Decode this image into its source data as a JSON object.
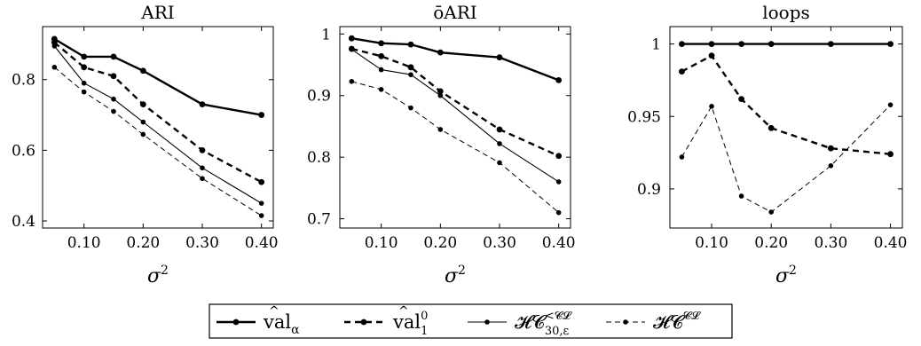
{
  "chart_data": [
    {
      "type": "line",
      "title": "ARI",
      "xlabel": "σ2",
      "ylabel": "",
      "x": [
        0.05,
        0.1,
        0.15,
        0.2,
        0.3,
        0.4
      ],
      "x_ticks": [
        "0.10",
        "0.20",
        "0.30",
        "0.40"
      ],
      "x_tick_values": [
        0.1,
        0.2,
        0.3,
        0.4
      ],
      "xlim": [
        0.03,
        0.42
      ],
      "ylim": [
        0.38,
        0.95
      ],
      "y_ticks": [
        "0.4",
        "0.6",
        "0.8"
      ],
      "y_tick_values": [
        0.4,
        0.6,
        0.8
      ],
      "series": [
        {
          "values": [
            0.915,
            0.865,
            0.865,
            0.825,
            0.73,
            0.7
          ]
        },
        {
          "values": [
            0.905,
            0.835,
            0.81,
            0.73,
            0.6,
            0.51
          ]
        },
        {
          "values": [
            0.895,
            0.79,
            0.745,
            0.68,
            0.55,
            0.45
          ]
        },
        {
          "values": [
            0.835,
            0.765,
            0.71,
            0.645,
            0.52,
            0.415
          ]
        }
      ]
    },
    {
      "type": "line",
      "title": "ōARI",
      "xlabel": "σ2",
      "ylabel": "",
      "x": [
        0.05,
        0.1,
        0.15,
        0.2,
        0.3,
        0.4
      ],
      "x_ticks": [
        "0.10",
        "0.20",
        "0.30",
        "0.40"
      ],
      "x_tick_values": [
        0.1,
        0.2,
        0.3,
        0.4
      ],
      "xlim": [
        0.03,
        0.42
      ],
      "ylim": [
        0.685,
        1.012
      ],
      "y_ticks": [
        "0.7",
        "0.8",
        "0.9",
        "1"
      ],
      "y_tick_values": [
        0.7,
        0.8,
        0.9,
        1.0
      ],
      "series": [
        {
          "values": [
            0.993,
            0.985,
            0.983,
            0.97,
            0.962,
            0.925
          ]
        },
        {
          "values": [
            0.976,
            0.964,
            0.946,
            0.907,
            0.845,
            0.802
          ]
        },
        {
          "values": [
            0.975,
            0.942,
            0.934,
            0.9,
            0.822,
            0.76
          ]
        },
        {
          "values": [
            0.923,
            0.91,
            0.88,
            0.845,
            0.791,
            0.71
          ]
        }
      ]
    },
    {
      "type": "line",
      "title": "loops",
      "xlabel": "σ2",
      "ylabel": "",
      "x": [
        0.05,
        0.1,
        0.15,
        0.2,
        0.3,
        0.4
      ],
      "x_ticks": [
        "0.10",
        "0.20",
        "0.30",
        "0.40"
      ],
      "x_tick_values": [
        0.1,
        0.2,
        0.3,
        0.4
      ],
      "xlim": [
        0.03,
        0.42
      ],
      "ylim": [
        0.873,
        1.012
      ],
      "y_ticks": [
        "0.9",
        "0.95",
        "1"
      ],
      "y_tick_values": [
        0.9,
        0.95,
        1.0
      ],
      "series": [
        {
          "values": [
            1.0,
            1.0,
            1.0,
            1.0,
            1.0,
            1.0
          ]
        },
        {
          "values": [
            0.981,
            0.992,
            0.962,
            0.942,
            0.928,
            0.924
          ]
        },
        {
          "values": [
            null,
            null,
            null,
            null,
            null,
            null
          ]
        },
        {
          "values": [
            0.922,
            0.957,
            0.895,
            0.884,
            0.916,
            0.958
          ]
        }
      ]
    }
  ],
  "legend": [
    {
      "label_main": "val",
      "label_hat": "^",
      "label_sub": "α",
      "label_sup": "",
      "style": "thick-solid"
    },
    {
      "label_main": "val",
      "label_hat": "^",
      "label_sub": "1",
      "label_sup": "0",
      "style": "thick-dashed"
    },
    {
      "label_main": "𝓗𝓒",
      "label_hat": "",
      "label_sub": "30,ε",
      "label_sup": "<𝓒𝓛",
      "style": "thin-solid"
    },
    {
      "label_main": "𝓗𝓒",
      "label_hat": "",
      "label_sub": "",
      "label_sup": "𝓒𝓛",
      "style": "thin-dashed"
    }
  ],
  "colors": {
    "line": "#000000",
    "background": "#ffffff"
  }
}
